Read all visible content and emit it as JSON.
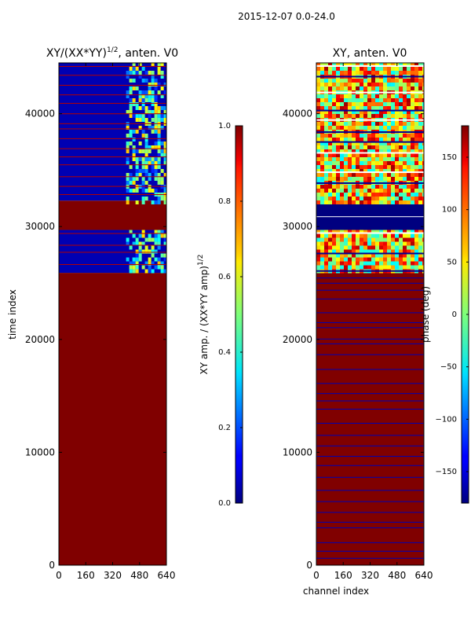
{
  "suptitle": "2015-12-07 0.0-24.0",
  "chart_data": [
    {
      "type": "heatmap",
      "title_prefix": "XY/(XX*YY)",
      "title_exponent": "1/2",
      "title_suffix": ", anten. V0",
      "xlabel": "",
      "ylabel": "time index",
      "xlim": [
        0,
        640
      ],
      "ylim": [
        0,
        44500
      ],
      "xticks": [
        0,
        160,
        320,
        480,
        640
      ],
      "xtick_labels": [
        "0",
        "160",
        "320",
        "480",
        "640"
      ],
      "yticks": [
        0,
        10000,
        20000,
        30000,
        40000
      ],
      "ytick_labels": [
        "0",
        "10000",
        "20000",
        "30000",
        "40000"
      ],
      "colormap": "jet",
      "colorbar": {
        "label_prefix": "XY amp. / (XX*YY amp)",
        "label_exponent": "1/2",
        "range": [
          0.0,
          1.0
        ],
        "ticks": [
          0.0,
          0.2,
          0.4,
          0.6,
          0.8,
          1.0
        ],
        "tick_labels": [
          "0.0",
          "0.2",
          "0.4",
          "0.6",
          "0.8",
          "1.0"
        ]
      },
      "regions": [
        {
          "y_range": [
            0,
            25900
          ],
          "value": 1.0
        },
        {
          "y_range": [
            25900,
            29700
          ],
          "value": 0.05,
          "active_channels": [
            400,
            640
          ],
          "active_value": 0.35
        },
        {
          "y_range": [
            29700,
            32300
          ],
          "value": 1.0
        },
        {
          "y_range": [
            32300,
            44500
          ],
          "value": 0.05,
          "active_channels": [
            400,
            640
          ],
          "active_value": 0.3
        }
      ]
    },
    {
      "type": "heatmap",
      "title": "XY, anten. V0",
      "xlabel": "channel index",
      "ylabel": "",
      "xlim": [
        0,
        640
      ],
      "ylim": [
        0,
        44500
      ],
      "xticks": [
        0,
        160,
        320,
        480,
        640
      ],
      "xtick_labels": [
        "0",
        "160",
        "320",
        "480",
        "640"
      ],
      "yticks": [
        0,
        10000,
        20000,
        30000,
        40000
      ],
      "ytick_labels": [
        "0",
        "10000",
        "20000",
        "30000",
        "40000"
      ],
      "colormap": "jet",
      "colorbar": {
        "label": "phase (deg)",
        "range": [
          -180,
          180
        ],
        "ticks": [
          -150,
          -100,
          -50,
          0,
          50,
          100,
          150
        ],
        "tick_labels": [
          "−150",
          "−100",
          "−50",
          "0",
          "50",
          "100",
          "150"
        ]
      },
      "regions": [
        {
          "y_range": [
            0,
            25900
          ],
          "value": 180
        },
        {
          "y_range": [
            25900,
            29700
          ],
          "value": 60
        },
        {
          "y_range": [
            29700,
            32300
          ],
          "value": -180
        },
        {
          "y_range": [
            32300,
            44500
          ],
          "value": 60
        }
      ]
    }
  ]
}
